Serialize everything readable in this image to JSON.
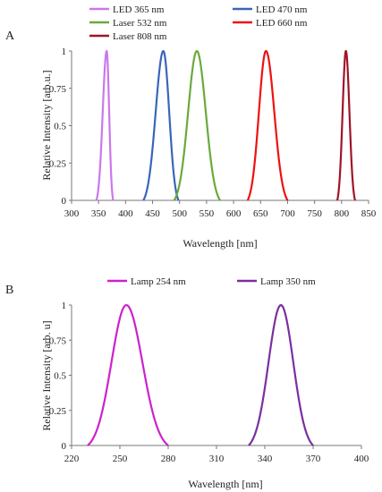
{
  "chart_data": [
    {
      "type": "line",
      "panel_label": "A",
      "xlabel": "Wavelength [nm]",
      "ylabel": "Relative Intensity [arb.u.]",
      "xlim": [
        300,
        850
      ],
      "ylim": [
        0,
        1
      ],
      "x_ticks": [
        300,
        350,
        400,
        450,
        500,
        550,
        600,
        650,
        700,
        750,
        800,
        850
      ],
      "x_tick_labels": [
        "300",
        "350",
        "400",
        "450",
        "500",
        "550",
        "600",
        "650",
        "700",
        "750",
        "800",
        "850"
      ],
      "y_ticks": [
        0,
        0.25,
        0.5,
        0.75,
        1
      ],
      "y_tick_labels": [
        "0",
        "0.25",
        "0.5",
        "0.75",
        "1"
      ],
      "grid": false,
      "legend_position": "top",
      "series": [
        {
          "name": "LED 365 nm",
          "color": "#cc77ee",
          "center": 365,
          "x_start": 346,
          "x_end": 377
        },
        {
          "name": "LED 470 nm",
          "color": "#3a66b8",
          "center": 470,
          "x_start": 433,
          "x_end": 498
        },
        {
          "name": "Laser 532 nm",
          "color": "#6aaa3a",
          "center": 532,
          "x_start": 490,
          "x_end": 575
        },
        {
          "name": "LED 660 nm",
          "color": "#ee1111",
          "center": 660,
          "x_start": 626,
          "x_end": 700
        },
        {
          "name": "Laser 808 nm",
          "color": "#a01428",
          "center": 808,
          "x_start": 792,
          "x_end": 825
        }
      ]
    },
    {
      "type": "line",
      "panel_label": "B",
      "xlabel": "Wavelength [nm]",
      "ylabel": "Relative Intensity [arb. u]",
      "xlim": [
        220,
        400
      ],
      "ylim": [
        0,
        1
      ],
      "x_ticks": [
        220,
        250,
        280,
        310,
        340,
        370,
        400
      ],
      "x_tick_labels": [
        "220",
        "250",
        "280",
        "310",
        "340",
        "370",
        "400"
      ],
      "y_ticks": [
        0,
        0.25,
        0.5,
        0.75,
        1
      ],
      "y_tick_labels": [
        "0",
        "0.25",
        "0.5",
        "0.75",
        "1"
      ],
      "grid": false,
      "legend_position": "top",
      "series": [
        {
          "name": "Lamp 254 nm",
          "color": "#cc22cc",
          "center": 254,
          "x_start": 230,
          "x_end": 280
        },
        {
          "name": "Lamp 350 nm",
          "color": "#7a2fa0",
          "center": 350,
          "x_start": 330,
          "x_end": 370
        }
      ]
    }
  ]
}
